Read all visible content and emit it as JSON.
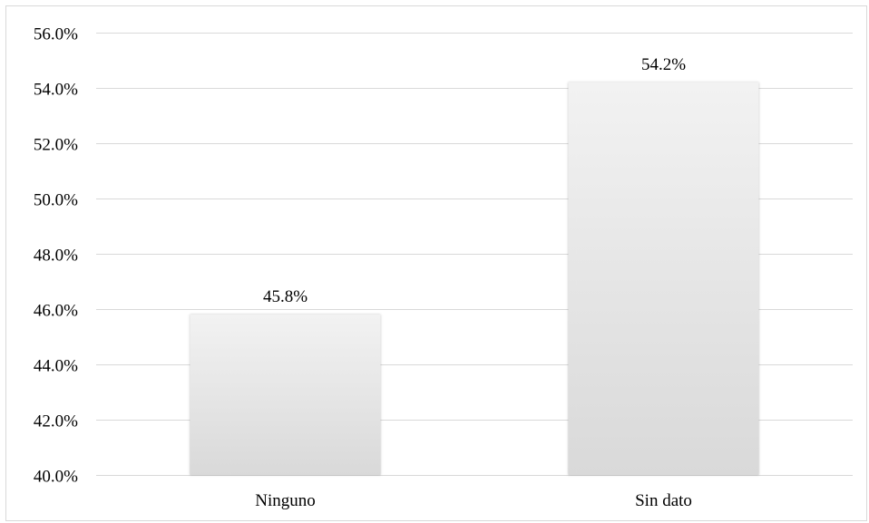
{
  "chart_data": {
    "type": "bar",
    "categories": [
      "Ninguno",
      "Sin dato"
    ],
    "values": [
      45.8,
      54.2
    ],
    "data_labels": [
      "45.8%",
      "54.2%"
    ],
    "title": "",
    "xlabel": "",
    "ylabel": "",
    "ylim": [
      40.0,
      56.0
    ],
    "yticks": [
      40.0,
      42.0,
      44.0,
      46.0,
      48.0,
      50.0,
      52.0,
      54.0,
      56.0
    ],
    "ytick_labels": [
      "40.0%",
      "42.0%",
      "44.0%",
      "46.0%",
      "48.0%",
      "50.0%",
      "52.0%",
      "54.0%",
      "56.0%"
    ],
    "grid": true,
    "legend": "none",
    "colors": {
      "bar_top": "#f2f2f2",
      "bar_bottom": "#d9d9d9",
      "gridline": "#d9d9d9",
      "text": "#000000"
    }
  }
}
